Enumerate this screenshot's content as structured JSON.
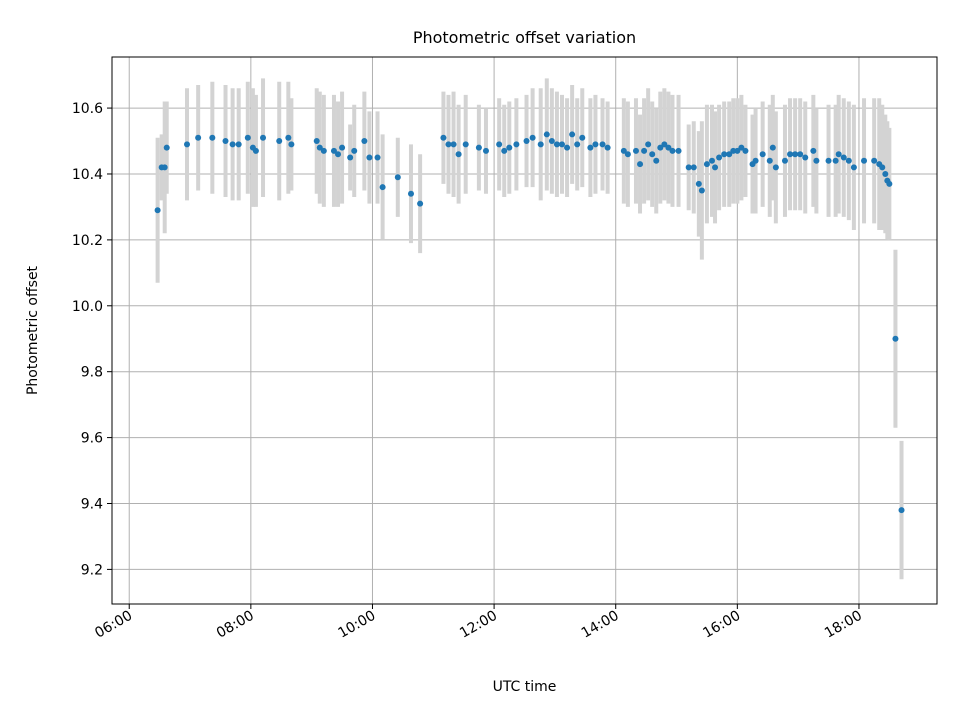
{
  "chart_data": {
    "type": "scatter",
    "title": "Photometric offset variation",
    "xlabel": "UTC time",
    "ylabel": "Photometric offset",
    "grid": true,
    "legend": "none",
    "xlim": [
      "05:43",
      "19:17"
    ],
    "ylim": [
      9.095,
      10.755
    ],
    "x_ticks": [
      "06:00",
      "08:00",
      "10:00",
      "12:00",
      "14:00",
      "16:00",
      "18:00"
    ],
    "y_ticks": [
      9.2,
      9.4,
      9.6,
      9.8,
      10.0,
      10.2,
      10.4,
      10.6
    ],
    "y_tick_labels": [
      "9.2",
      "9.4",
      "9.6",
      "9.8",
      "10.0",
      "10.2",
      "10.4",
      "10.6"
    ],
    "colors": {
      "point": "#1f77b4",
      "errorbar": "#d3d3d3",
      "grid": "#b0b0b0"
    },
    "points": [
      {
        "x": "06:28",
        "y": 10.29,
        "err": 0.22
      },
      {
        "x": "06:32",
        "y": 10.42,
        "err": 0.1
      },
      {
        "x": "06:35",
        "y": 10.42,
        "err": 0.2
      },
      {
        "x": "06:37",
        "y": 10.48,
        "err": 0.14
      },
      {
        "x": "06:57",
        "y": 10.49,
        "err": 0.17
      },
      {
        "x": "07:08",
        "y": 10.51,
        "err": 0.16
      },
      {
        "x": "07:22",
        "y": 10.51,
        "err": 0.17
      },
      {
        "x": "07:35",
        "y": 10.5,
        "err": 0.17
      },
      {
        "x": "07:42",
        "y": 10.49,
        "err": 0.17
      },
      {
        "x": "07:48",
        "y": 10.49,
        "err": 0.17
      },
      {
        "x": "07:57",
        "y": 10.51,
        "err": 0.17
      },
      {
        "x": "08:02",
        "y": 10.48,
        "err": 0.18
      },
      {
        "x": "08:05",
        "y": 10.47,
        "err": 0.17
      },
      {
        "x": "08:12",
        "y": 10.51,
        "err": 0.18
      },
      {
        "x": "08:28",
        "y": 10.5,
        "err": 0.18
      },
      {
        "x": "08:37",
        "y": 10.51,
        "err": 0.17
      },
      {
        "x": "08:40",
        "y": 10.49,
        "err": 0.14
      },
      {
        "x": "09:05",
        "y": 10.5,
        "err": 0.16
      },
      {
        "x": "09:08",
        "y": 10.48,
        "err": 0.17
      },
      {
        "x": "09:12",
        "y": 10.47,
        "err": 0.17
      },
      {
        "x": "09:22",
        "y": 10.47,
        "err": 0.17
      },
      {
        "x": "09:26",
        "y": 10.46,
        "err": 0.16
      },
      {
        "x": "09:30",
        "y": 10.48,
        "err": 0.17
      },
      {
        "x": "09:38",
        "y": 10.45,
        "err": 0.1
      },
      {
        "x": "09:42",
        "y": 10.47,
        "err": 0.14
      },
      {
        "x": "09:52",
        "y": 10.5,
        "err": 0.15
      },
      {
        "x": "09:57",
        "y": 10.45,
        "err": 0.14
      },
      {
        "x": "10:05",
        "y": 10.45,
        "err": 0.14
      },
      {
        "x": "10:10",
        "y": 10.36,
        "err": 0.16
      },
      {
        "x": "10:25",
        "y": 10.39,
        "err": 0.12
      },
      {
        "x": "10:38",
        "y": 10.34,
        "err": 0.15
      },
      {
        "x": "10:47",
        "y": 10.31,
        "err": 0.15
      },
      {
        "x": "11:10",
        "y": 10.51,
        "err": 0.14
      },
      {
        "x": "11:15",
        "y": 10.49,
        "err": 0.15
      },
      {
        "x": "11:20",
        "y": 10.49,
        "err": 0.16
      },
      {
        "x": "11:25",
        "y": 10.46,
        "err": 0.15
      },
      {
        "x": "11:32",
        "y": 10.49,
        "err": 0.15
      },
      {
        "x": "11:45",
        "y": 10.48,
        "err": 0.13
      },
      {
        "x": "11:52",
        "y": 10.47,
        "err": 0.13
      },
      {
        "x": "12:05",
        "y": 10.49,
        "err": 0.14
      },
      {
        "x": "12:10",
        "y": 10.47,
        "err": 0.14
      },
      {
        "x": "12:15",
        "y": 10.48,
        "err": 0.14
      },
      {
        "x": "12:22",
        "y": 10.49,
        "err": 0.14
      },
      {
        "x": "12:32",
        "y": 10.5,
        "err": 0.14
      },
      {
        "x": "12:38",
        "y": 10.51,
        "err": 0.15
      },
      {
        "x": "12:46",
        "y": 10.49,
        "err": 0.17
      },
      {
        "x": "12:52",
        "y": 10.52,
        "err": 0.17
      },
      {
        "x": "12:57",
        "y": 10.5,
        "err": 0.16
      },
      {
        "x": "13:02",
        "y": 10.49,
        "err": 0.16
      },
      {
        "x": "13:07",
        "y": 10.49,
        "err": 0.15
      },
      {
        "x": "13:12",
        "y": 10.48,
        "err": 0.15
      },
      {
        "x": "13:17",
        "y": 10.52,
        "err": 0.15
      },
      {
        "x": "13:22",
        "y": 10.49,
        "err": 0.14
      },
      {
        "x": "13:27",
        "y": 10.51,
        "err": 0.15
      },
      {
        "x": "13:35",
        "y": 10.48,
        "err": 0.15
      },
      {
        "x": "13:40",
        "y": 10.49,
        "err": 0.15
      },
      {
        "x": "13:47",
        "y": 10.49,
        "err": 0.14
      },
      {
        "x": "13:52",
        "y": 10.48,
        "err": 0.14
      },
      {
        "x": "14:08",
        "y": 10.47,
        "err": 0.16
      },
      {
        "x": "14:12",
        "y": 10.46,
        "err": 0.16
      },
      {
        "x": "14:20",
        "y": 10.47,
        "err": 0.16
      },
      {
        "x": "14:24",
        "y": 10.43,
        "err": 0.15
      },
      {
        "x": "14:28",
        "y": 10.47,
        "err": 0.16
      },
      {
        "x": "14:32",
        "y": 10.49,
        "err": 0.17
      },
      {
        "x": "14:36",
        "y": 10.46,
        "err": 0.16
      },
      {
        "x": "14:40",
        "y": 10.44,
        "err": 0.16
      },
      {
        "x": "14:44",
        "y": 10.48,
        "err": 0.17
      },
      {
        "x": "14:48",
        "y": 10.49,
        "err": 0.17
      },
      {
        "x": "14:52",
        "y": 10.48,
        "err": 0.17
      },
      {
        "x": "14:56",
        "y": 10.47,
        "err": 0.17
      },
      {
        "x": "15:02",
        "y": 10.47,
        "err": 0.17
      },
      {
        "x": "15:12",
        "y": 10.42,
        "err": 0.13
      },
      {
        "x": "15:17",
        "y": 10.42,
        "err": 0.14
      },
      {
        "x": "15:22",
        "y": 10.37,
        "err": 0.16
      },
      {
        "x": "15:25",
        "y": 10.35,
        "err": 0.21
      },
      {
        "x": "15:30",
        "y": 10.43,
        "err": 0.18
      },
      {
        "x": "15:35",
        "y": 10.44,
        "err": 0.17
      },
      {
        "x": "15:38",
        "y": 10.42,
        "err": 0.17
      },
      {
        "x": "15:42",
        "y": 10.45,
        "err": 0.16
      },
      {
        "x": "15:47",
        "y": 10.46,
        "err": 0.16
      },
      {
        "x": "15:52",
        "y": 10.46,
        "err": 0.16
      },
      {
        "x": "15:56",
        "y": 10.47,
        "err": 0.16
      },
      {
        "x": "16:00",
        "y": 10.47,
        "err": 0.16
      },
      {
        "x": "16:04",
        "y": 10.48,
        "err": 0.16
      },
      {
        "x": "16:08",
        "y": 10.47,
        "err": 0.14
      },
      {
        "x": "16:15",
        "y": 10.43,
        "err": 0.15
      },
      {
        "x": "16:18",
        "y": 10.44,
        "err": 0.16
      },
      {
        "x": "16:25",
        "y": 10.46,
        "err": 0.16
      },
      {
        "x": "16:32",
        "y": 10.44,
        "err": 0.17
      },
      {
        "x": "16:35",
        "y": 10.48,
        "err": 0.16
      },
      {
        "x": "16:38",
        "y": 10.42,
        "err": 0.17
      },
      {
        "x": "16:47",
        "y": 10.44,
        "err": 0.17
      },
      {
        "x": "16:52",
        "y": 10.46,
        "err": 0.17
      },
      {
        "x": "16:57",
        "y": 10.46,
        "err": 0.17
      },
      {
        "x": "17:02",
        "y": 10.46,
        "err": 0.17
      },
      {
        "x": "17:07",
        "y": 10.45,
        "err": 0.17
      },
      {
        "x": "17:15",
        "y": 10.47,
        "err": 0.17
      },
      {
        "x": "17:18",
        "y": 10.44,
        "err": 0.16
      },
      {
        "x": "17:30",
        "y": 10.44,
        "err": 0.17
      },
      {
        "x": "17:37",
        "y": 10.44,
        "err": 0.17
      },
      {
        "x": "17:40",
        "y": 10.46,
        "err": 0.18
      },
      {
        "x": "17:45",
        "y": 10.45,
        "err": 0.18
      },
      {
        "x": "17:50",
        "y": 10.44,
        "err": 0.18
      },
      {
        "x": "17:55",
        "y": 10.42,
        "err": 0.19
      },
      {
        "x": "18:05",
        "y": 10.44,
        "err": 0.19
      },
      {
        "x": "18:15",
        "y": 10.44,
        "err": 0.19
      },
      {
        "x": "18:20",
        "y": 10.43,
        "err": 0.2
      },
      {
        "x": "18:23",
        "y": 10.42,
        "err": 0.19
      },
      {
        "x": "18:26",
        "y": 10.4,
        "err": 0.18
      },
      {
        "x": "18:28",
        "y": 10.38,
        "err": 0.18
      },
      {
        "x": "18:30",
        "y": 10.37,
        "err": 0.17
      },
      {
        "x": "18:36",
        "y": 9.9,
        "err": 0.27
      },
      {
        "x": "18:42",
        "y": 9.38,
        "err": 0.21
      }
    ]
  }
}
